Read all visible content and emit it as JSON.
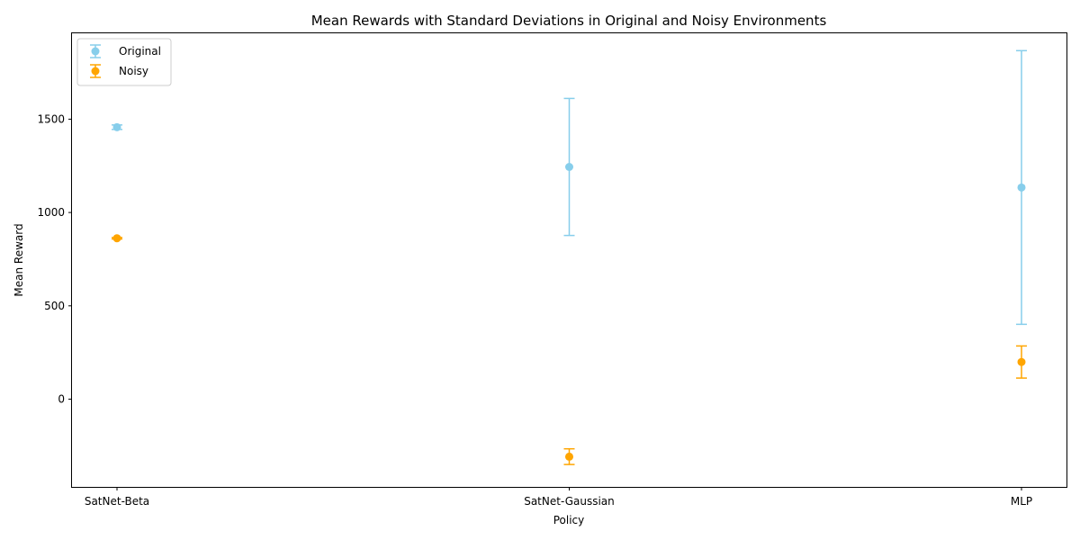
{
  "chart_data": {
    "type": "scatter",
    "title": "Mean Rewards with Standard Deviations in Original and Noisy Environments",
    "xlabel": "Policy",
    "ylabel": "Mean Reward",
    "categories": [
      "SatNet-Beta",
      "SatNet-Gaussian",
      "MLP"
    ],
    "ylim": [
      -470,
      1960
    ],
    "yticks": [
      0,
      500,
      1000,
      1500
    ],
    "grid": false,
    "legend_position": "upper-left",
    "error_bars": true,
    "series": [
      {
        "name": "Original",
        "color": "#87CEEB",
        "values": [
          1457,
          1244,
          1134
        ],
        "errors": [
          12,
          367,
          733
        ]
      },
      {
        "name": "Noisy",
        "color": "#FFA500",
        "values": [
          862,
          -308,
          199
        ],
        "errors": [
          4,
          42,
          86
        ]
      }
    ]
  }
}
